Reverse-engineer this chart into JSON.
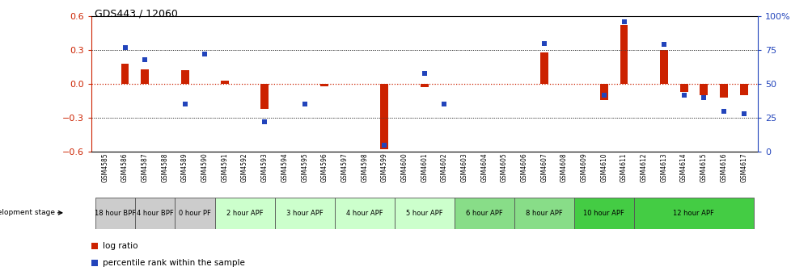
{
  "title": "GDS443 / 12060",
  "samples": [
    "GSM4585",
    "GSM4586",
    "GSM4587",
    "GSM4588",
    "GSM4589",
    "GSM4590",
    "GSM4591",
    "GSM4592",
    "GSM4593",
    "GSM4594",
    "GSM4595",
    "GSM4596",
    "GSM4597",
    "GSM4598",
    "GSM4599",
    "GSM4600",
    "GSM4601",
    "GSM4602",
    "GSM4603",
    "GSM4604",
    "GSM4605",
    "GSM4606",
    "GSM4607",
    "GSM4608",
    "GSM4609",
    "GSM4610",
    "GSM4611",
    "GSM4612",
    "GSM4613",
    "GSM4614",
    "GSM4615",
    "GSM4616",
    "GSM4617"
  ],
  "log_ratio": [
    0.0,
    0.18,
    0.13,
    0.0,
    0.12,
    0.0,
    0.03,
    0.0,
    -0.22,
    0.0,
    0.0,
    -0.02,
    0.0,
    0.0,
    -0.58,
    0.0,
    -0.03,
    0.0,
    0.0,
    0.0,
    0.0,
    0.0,
    0.28,
    0.0,
    0.0,
    -0.14,
    0.52,
    0.0,
    0.3,
    -0.07,
    -0.1,
    -0.12,
    -0.1
  ],
  "percentile_rank": [
    null,
    77,
    68,
    null,
    35,
    72,
    null,
    null,
    22,
    null,
    35,
    null,
    null,
    null,
    5,
    null,
    58,
    35,
    null,
    null,
    null,
    null,
    80,
    null,
    null,
    42,
    96,
    null,
    79,
    42,
    40,
    30,
    28
  ],
  "ylim_left": [
    -0.6,
    0.6
  ],
  "ylim_right": [
    0,
    100
  ],
  "yticks_left": [
    -0.6,
    -0.3,
    0.0,
    0.3,
    0.6
  ],
  "yticks_right": [
    0,
    25,
    50,
    75,
    100
  ],
  "bar_color": "#cc2200",
  "dot_color": "#2244bb",
  "zero_line_color": "#cc2200",
  "dotted_line_color": "#444444",
  "stages": [
    {
      "label": "18 hour BPF",
      "start": 0,
      "end": 2,
      "color": "#cccccc"
    },
    {
      "label": "4 hour BPF",
      "start": 2,
      "end": 4,
      "color": "#cccccc"
    },
    {
      "label": "0 hour PF",
      "start": 4,
      "end": 6,
      "color": "#cccccc"
    },
    {
      "label": "2 hour APF",
      "start": 6,
      "end": 9,
      "color": "#ccffcc"
    },
    {
      "label": "3 hour APF",
      "start": 9,
      "end": 12,
      "color": "#ccffcc"
    },
    {
      "label": "4 hour APF",
      "start": 12,
      "end": 15,
      "color": "#ccffcc"
    },
    {
      "label": "5 hour APF",
      "start": 15,
      "end": 18,
      "color": "#ccffcc"
    },
    {
      "label": "6 hour APF",
      "start": 18,
      "end": 21,
      "color": "#88dd88"
    },
    {
      "label": "8 hour APF",
      "start": 21,
      "end": 24,
      "color": "#88dd88"
    },
    {
      "label": "10 hour APF",
      "start": 24,
      "end": 27,
      "color": "#44cc44"
    },
    {
      "label": "12 hour APF",
      "start": 27,
      "end": 33,
      "color": "#44cc44"
    }
  ]
}
